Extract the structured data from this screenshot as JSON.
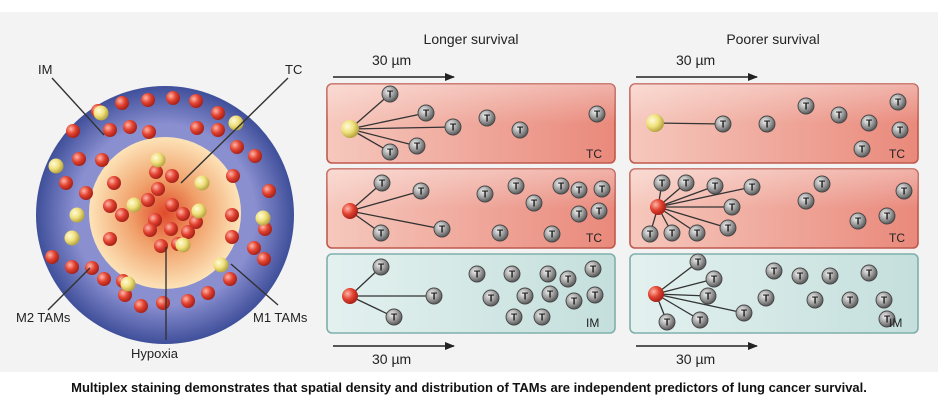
{
  "figure": {
    "caption": "Multiplex staining demonstrates that spatial density and distribution of TAMs are independent predictors of lung cancer survival."
  },
  "columns": {
    "left_title": "Longer survival",
    "right_title": "Poorer survival"
  },
  "scale": {
    "top_left": "30 µm",
    "top_right": "30 µm",
    "bottom_left": "30 µm",
    "bottom_right": "30 µm"
  },
  "circle_labels": {
    "im": "IM",
    "tc": "TC",
    "m2": "M2 TAMs",
    "m1": "M1 TAMs",
    "hypoxia": "Hypoxia"
  },
  "panel_labels": {
    "row1": "TC",
    "row2": "TC",
    "row3": "IM"
  },
  "tcell_glyph": "T",
  "colors": {
    "tc_panel": "#eda096",
    "im_panel": "#d3e8e6",
    "m2_cell": "#e0402e",
    "m1_cell": "#efe07c",
    "tcell": "#8f8f8f",
    "ring": "#5f6fb6",
    "arrow": "#222222"
  }
}
